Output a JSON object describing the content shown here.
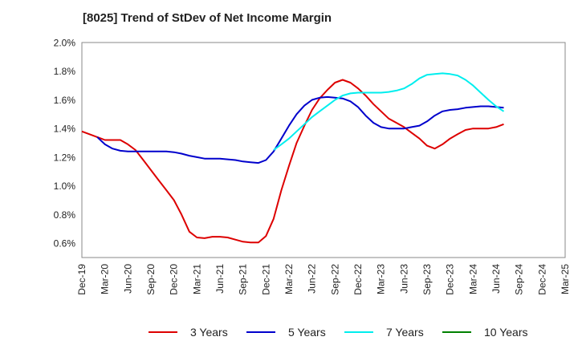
{
  "chart_data": {
    "type": "line",
    "title": "[8025]  Trend of StDev of Net Income Margin",
    "xlabel": "",
    "ylabel": "",
    "ylim": [
      0.5,
      2.0
    ],
    "yticks": [
      "2.0%",
      "1.8%",
      "1.6%",
      "1.4%",
      "1.2%",
      "1.0%",
      "0.8%",
      "0.6%"
    ],
    "ytick_values": [
      2.0,
      1.8,
      1.6,
      1.4,
      1.2,
      1.0,
      0.8,
      0.6
    ],
    "categories": [
      "Dec-19",
      "Mar-20",
      "Jun-20",
      "Sep-20",
      "Dec-20",
      "Mar-21",
      "Jun-21",
      "Sep-21",
      "Dec-21",
      "Mar-22",
      "Jun-22",
      "Sep-22",
      "Dec-22",
      "Mar-23",
      "Jun-23",
      "Sep-23",
      "Dec-23",
      "Mar-24",
      "Jun-24",
      "Sep-24",
      "Dec-24",
      "Mar-25"
    ],
    "grid": true,
    "legend_position": "bottom",
    "series": [
      {
        "name": "3 Years",
        "color": "#dd0000",
        "points": [
          [
            0,
            1.38
          ],
          [
            0.33,
            1.36
          ],
          [
            0.67,
            1.34
          ],
          [
            1,
            1.32
          ],
          [
            1.33,
            1.32
          ],
          [
            1.67,
            1.32
          ],
          [
            2,
            1.29
          ],
          [
            2.33,
            1.25
          ],
          [
            2.67,
            1.18
          ],
          [
            3,
            1.11
          ],
          [
            3.33,
            1.04
          ],
          [
            3.67,
            0.97
          ],
          [
            4,
            0.9
          ],
          [
            4.33,
            0.8
          ],
          [
            4.67,
            0.68
          ],
          [
            5,
            0.64
          ],
          [
            5.33,
            0.635
          ],
          [
            5.67,
            0.645
          ],
          [
            6,
            0.645
          ],
          [
            6.33,
            0.64
          ],
          [
            6.67,
            0.625
          ],
          [
            7,
            0.61
          ],
          [
            7.33,
            0.605
          ],
          [
            7.67,
            0.605
          ],
          [
            8,
            0.65
          ],
          [
            8.33,
            0.77
          ],
          [
            8.67,
            0.97
          ],
          [
            9,
            1.14
          ],
          [
            9.33,
            1.3
          ],
          [
            9.67,
            1.42
          ],
          [
            10,
            1.53
          ],
          [
            10.33,
            1.61
          ],
          [
            10.67,
            1.67
          ],
          [
            11,
            1.72
          ],
          [
            11.33,
            1.74
          ],
          [
            11.67,
            1.72
          ],
          [
            12,
            1.68
          ],
          [
            12.33,
            1.63
          ],
          [
            12.67,
            1.57
          ],
          [
            13,
            1.52
          ],
          [
            13.33,
            1.47
          ],
          [
            13.67,
            1.44
          ],
          [
            14,
            1.41
          ],
          [
            14.33,
            1.37
          ],
          [
            14.67,
            1.33
          ],
          [
            15,
            1.28
          ],
          [
            15.33,
            1.26
          ],
          [
            15.67,
            1.29
          ],
          [
            16,
            1.33
          ],
          [
            16.33,
            1.36
          ],
          [
            16.67,
            1.39
          ],
          [
            17,
            1.4
          ],
          [
            17.33,
            1.4
          ],
          [
            17.67,
            1.4
          ],
          [
            18,
            1.41
          ],
          [
            18.33,
            1.43
          ]
        ]
      },
      {
        "name": "5 Years",
        "color": "#0000cc",
        "points": [
          [
            0.67,
            1.34
          ],
          [
            1,
            1.29
          ],
          [
            1.33,
            1.26
          ],
          [
            1.67,
            1.245
          ],
          [
            2,
            1.24
          ],
          [
            2.33,
            1.24
          ],
          [
            2.67,
            1.24
          ],
          [
            3,
            1.24
          ],
          [
            3.33,
            1.24
          ],
          [
            3.67,
            1.24
          ],
          [
            4,
            1.235
          ],
          [
            4.33,
            1.225
          ],
          [
            4.67,
            1.21
          ],
          [
            5,
            1.2
          ],
          [
            5.33,
            1.19
          ],
          [
            5.67,
            1.19
          ],
          [
            6,
            1.19
          ],
          [
            6.33,
            1.185
          ],
          [
            6.67,
            1.18
          ],
          [
            7,
            1.17
          ],
          [
            7.33,
            1.165
          ],
          [
            7.67,
            1.16
          ],
          [
            8,
            1.18
          ],
          [
            8.33,
            1.24
          ],
          [
            8.67,
            1.33
          ],
          [
            9,
            1.42
          ],
          [
            9.33,
            1.5
          ],
          [
            9.67,
            1.56
          ],
          [
            10,
            1.6
          ],
          [
            10.33,
            1.615
          ],
          [
            10.67,
            1.62
          ],
          [
            11,
            1.615
          ],
          [
            11.33,
            1.61
          ],
          [
            11.67,
            1.59
          ],
          [
            12,
            1.55
          ],
          [
            12.33,
            1.49
          ],
          [
            12.67,
            1.44
          ],
          [
            13,
            1.41
          ],
          [
            13.33,
            1.4
          ],
          [
            13.67,
            1.4
          ],
          [
            14,
            1.4
          ],
          [
            14.33,
            1.41
          ],
          [
            14.67,
            1.42
          ],
          [
            15,
            1.45
          ],
          [
            15.33,
            1.49
          ],
          [
            15.67,
            1.52
          ],
          [
            16,
            1.53
          ],
          [
            16.33,
            1.535
          ],
          [
            16.67,
            1.545
          ],
          [
            17,
            1.55
          ],
          [
            17.33,
            1.555
          ],
          [
            17.67,
            1.555
          ],
          [
            18,
            1.55
          ],
          [
            18.33,
            1.545
          ]
        ]
      },
      {
        "name": "7 Years",
        "color": "#00eeee",
        "points": [
          [
            8.33,
            1.25
          ],
          [
            8.67,
            1.29
          ],
          [
            9,
            1.33
          ],
          [
            9.33,
            1.38
          ],
          [
            9.67,
            1.43
          ],
          [
            10,
            1.48
          ],
          [
            10.33,
            1.52
          ],
          [
            10.67,
            1.56
          ],
          [
            11,
            1.6
          ],
          [
            11.33,
            1.63
          ],
          [
            11.67,
            1.645
          ],
          [
            12,
            1.65
          ],
          [
            12.33,
            1.65
          ],
          [
            12.67,
            1.65
          ],
          [
            13,
            1.65
          ],
          [
            13.33,
            1.655
          ],
          [
            13.67,
            1.665
          ],
          [
            14,
            1.68
          ],
          [
            14.33,
            1.71
          ],
          [
            14.67,
            1.75
          ],
          [
            15,
            1.775
          ],
          [
            15.33,
            1.78
          ],
          [
            15.67,
            1.785
          ],
          [
            16,
            1.78
          ],
          [
            16.33,
            1.77
          ],
          [
            16.67,
            1.74
          ],
          [
            17,
            1.7
          ],
          [
            17.33,
            1.65
          ],
          [
            17.67,
            1.6
          ],
          [
            18,
            1.555
          ],
          [
            18.33,
            1.52
          ]
        ]
      },
      {
        "name": "10 Years",
        "color": "#008000",
        "points": []
      }
    ]
  }
}
